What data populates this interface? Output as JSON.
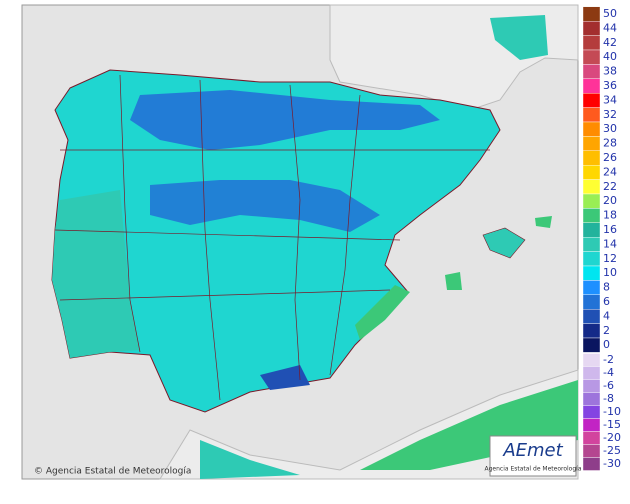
{
  "map": {
    "credit": "© Agencia Estatal de Meteorología",
    "logo": {
      "name": "AEmet",
      "subtitle": "Agencia Estatal de Meteorología"
    },
    "legend": {
      "positive": [
        {
          "value": 50,
          "color": "#8c3a12"
        },
        {
          "value": 44,
          "color": "#a32e2e"
        },
        {
          "value": 42,
          "color": "#b43c3c"
        },
        {
          "value": 40,
          "color": "#c44a55"
        },
        {
          "value": 38,
          "color": "#d9487e"
        },
        {
          "value": 36,
          "color": "#ff3399"
        },
        {
          "value": 34,
          "color": "#ff0000"
        },
        {
          "value": 32,
          "color": "#ff5a1e"
        },
        {
          "value": 30,
          "color": "#ff8c00"
        },
        {
          "value": 28,
          "color": "#ffa500"
        },
        {
          "value": 26,
          "color": "#ffbe00"
        },
        {
          "value": 24,
          "color": "#ffd700"
        },
        {
          "value": 22,
          "color": "#ffff33"
        },
        {
          "value": 20,
          "color": "#99ee55"
        },
        {
          "value": 18,
          "color": "#3cc878"
        },
        {
          "value": 16,
          "color": "#22b39c"
        },
        {
          "value": 14,
          "color": "#2ecab4"
        },
        {
          "value": 12,
          "color": "#1fd6d0"
        },
        {
          "value": 10,
          "color": "#00e5f0"
        },
        {
          "value": 8,
          "color": "#1e90ff"
        },
        {
          "value": 6,
          "color": "#2272d6"
        },
        {
          "value": 4,
          "color": "#2050b4"
        },
        {
          "value": 2,
          "color": "#142a88"
        },
        {
          "value": 0,
          "color": "#0a1560"
        }
      ],
      "negative": [
        {
          "value": -2,
          "color": "#e6d8f2"
        },
        {
          "value": -4,
          "color": "#cfb8ec"
        },
        {
          "value": -6,
          "color": "#b898e4"
        },
        {
          "value": -8,
          "color": "#9d74dc"
        },
        {
          "value": -10,
          "color": "#8444e2"
        },
        {
          "value": -15,
          "color": "#c224c4"
        },
        {
          "value": -20,
          "color": "#d2449e"
        },
        {
          "value": -25,
          "color": "#b44690"
        },
        {
          "value": -30,
          "color": "#8e3e8a"
        }
      ]
    }
  }
}
